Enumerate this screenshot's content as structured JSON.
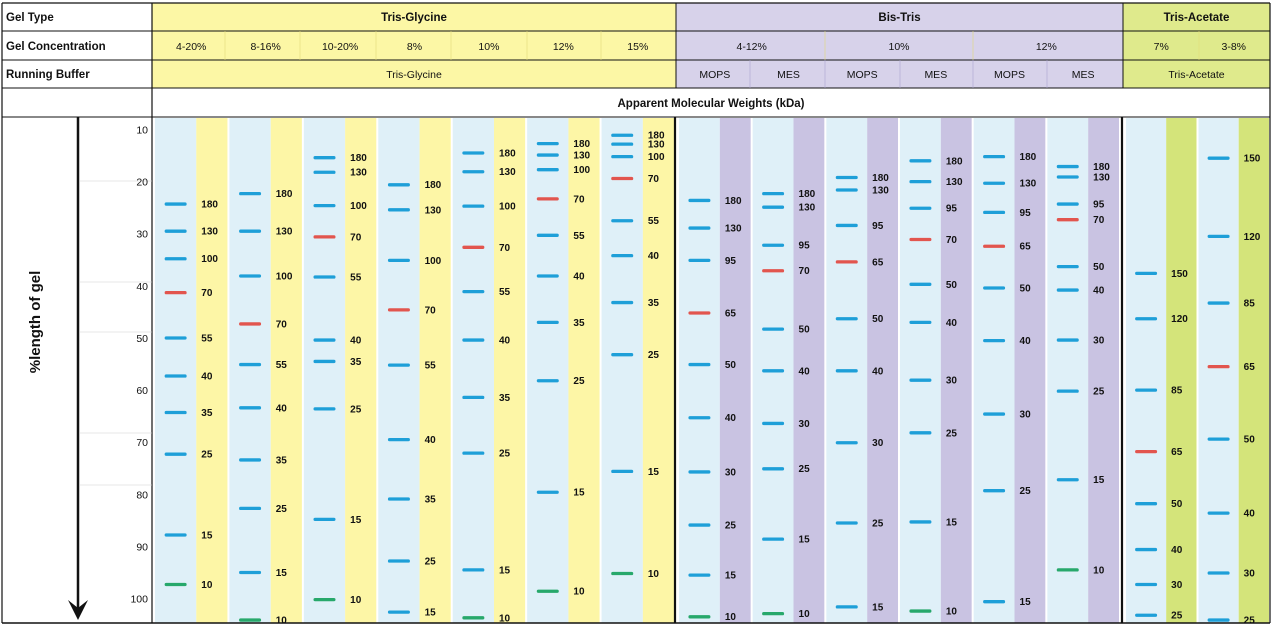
{
  "row_labels": {
    "gel_type": "Gel Type",
    "gel_concentration": "Gel Concentration",
    "running_buffer": "Running Buffer"
  },
  "colors": {
    "tris_glycine_bg": "#fcf7a5",
    "bis_tris_bg": "#d7d2ea",
    "tris_acetate_bg": "#dfea8c",
    "lane_bg": "#dff0f8",
    "label_col_tris_glycine": "#fdf6a6",
    "label_col_bis_tris": "#c9c3e2",
    "label_col_tris_acetate": "#d4e47a",
    "band_blue": "#1e9fd8",
    "band_red": "#e2554e",
    "band_green": "#27a86b",
    "label_red": "#e0312b",
    "label_green": "#1fa04d"
  },
  "groups": [
    {
      "name": "Tris-Glycine",
      "key": "tg"
    },
    {
      "name": "Bis-Tris",
      "key": "bt"
    },
    {
      "name": "Tris-Acetate",
      "key": "ta"
    }
  ],
  "buffers": [
    {
      "label": "Tris-Glycine",
      "group": "tg"
    },
    {
      "label": "MOPS",
      "group": "bt"
    },
    {
      "label": "MES",
      "group": "bt"
    },
    {
      "label": "MOPS",
      "group": "bt"
    },
    {
      "label": "MES",
      "group": "bt"
    },
    {
      "label": "MOPS",
      "group": "bt"
    },
    {
      "label": "MES",
      "group": "bt"
    },
    {
      "label": "Tris-Acetate",
      "group": "ta"
    }
  ],
  "section_title": "Apparent Molecular Weights (kDa)",
  "axis": {
    "label": "%length of gel",
    "ticks": [
      "10",
      "20",
      "30",
      "40",
      "50",
      "60",
      "70",
      "80",
      "90",
      "100"
    ],
    "range": [
      10,
      100
    ]
  },
  "chart_data": {
    "type": "table",
    "title": "Apparent Molecular Weights (kDa)",
    "ylabel": "%length of gel",
    "ylim": [
      10,
      100
    ],
    "lanes": [
      {
        "group": "tg",
        "concentration": "4-20%",
        "buffer": "Tris-Glycine",
        "bands": [
          {
            "kda": "180",
            "pos": 24.3
          },
          {
            "kda": "130",
            "pos": 29.5
          },
          {
            "kda": "100",
            "pos": 34.8
          },
          {
            "kda": "70",
            "pos": 41.3,
            "marker": "red"
          },
          {
            "kda": "55",
            "pos": 50
          },
          {
            "kda": "40",
            "pos": 57.3
          },
          {
            "kda": "35",
            "pos": 64.3
          },
          {
            "kda": "25",
            "pos": 72.3
          },
          {
            "kda": "15",
            "pos": 87.8
          },
          {
            "kda": "10",
            "pos": 97.3,
            "marker": "green"
          }
        ]
      },
      {
        "group": "tg",
        "concentration": "8-16%",
        "buffer": "Tris-Glycine",
        "bands": [
          {
            "kda": "180",
            "pos": 22.3
          },
          {
            "kda": "130",
            "pos": 29.5
          },
          {
            "kda": "100",
            "pos": 38.1
          },
          {
            "kda": "70",
            "pos": 47.3,
            "marker": "red"
          },
          {
            "kda": "55",
            "pos": 55.1
          },
          {
            "kda": "40",
            "pos": 63.4
          },
          {
            "kda": "35",
            "pos": 73.4
          },
          {
            "kda": "25",
            "pos": 82.7
          },
          {
            "kda": "15",
            "pos": 95
          },
          {
            "kda": "10",
            "pos": 104.2,
            "marker": "green"
          }
        ]
      },
      {
        "group": "tg",
        "concentration": "10-20%",
        "buffer": "Tris-Glycine",
        "bands": [
          {
            "kda": "180",
            "pos": 15.4
          },
          {
            "kda": "130",
            "pos": 18.2
          },
          {
            "kda": "100",
            "pos": 24.6
          },
          {
            "kda": "70",
            "pos": 30.6,
            "marker": "red"
          },
          {
            "kda": "55",
            "pos": 38.3
          },
          {
            "kda": "40",
            "pos": 50.4
          },
          {
            "kda": "35",
            "pos": 54.5
          },
          {
            "kda": "25",
            "pos": 63.6
          },
          {
            "kda": "15",
            "pos": 84.8
          },
          {
            "kda": "10",
            "pos": 100.2,
            "marker": "green"
          }
        ]
      },
      {
        "group": "tg",
        "concentration": "8%",
        "buffer": "Tris-Glycine",
        "bands": [
          {
            "kda": "180",
            "pos": 20.6
          },
          {
            "kda": "130",
            "pos": 25.4
          },
          {
            "kda": "100",
            "pos": 35.1
          },
          {
            "kda": "70",
            "pos": 44.6,
            "marker": "red"
          },
          {
            "kda": "55",
            "pos": 55.2
          },
          {
            "kda": "40",
            "pos": 69.5
          },
          {
            "kda": "35",
            "pos": 80.9
          },
          {
            "kda": "25",
            "pos": 92.8
          },
          {
            "kda": "15",
            "pos": 102.6
          }
        ]
      },
      {
        "group": "tg",
        "concentration": "10%",
        "buffer": "Tris-Glycine",
        "bands": [
          {
            "kda": "180",
            "pos": 14.5
          },
          {
            "kda": "130",
            "pos": 18.1
          },
          {
            "kda": "100",
            "pos": 24.7
          },
          {
            "kda": "70",
            "pos": 32.6,
            "marker": "red"
          },
          {
            "kda": "55",
            "pos": 41.1
          },
          {
            "kda": "40",
            "pos": 50.4
          },
          {
            "kda": "35",
            "pos": 61.4
          },
          {
            "kda": "25",
            "pos": 72.1
          },
          {
            "kda": "15",
            "pos": 94.5
          },
          {
            "kda": "10",
            "pos": 103.7,
            "marker": "green"
          }
        ]
      },
      {
        "group": "tg",
        "concentration": "12%",
        "buffer": "Tris-Glycine",
        "bands": [
          {
            "kda": "180",
            "pos": 12.7
          },
          {
            "kda": "130",
            "pos": 14.9
          },
          {
            "kda": "100",
            "pos": 17.7
          },
          {
            "kda": "70",
            "pos": 23.3,
            "marker": "red"
          },
          {
            "kda": "55",
            "pos": 30.3
          },
          {
            "kda": "40",
            "pos": 38.1
          },
          {
            "kda": "35",
            "pos": 47
          },
          {
            "kda": "25",
            "pos": 58.2
          },
          {
            "kda": "15",
            "pos": 79.6
          },
          {
            "kda": "10",
            "pos": 98.6,
            "marker": "green"
          }
        ]
      },
      {
        "group": "tg",
        "concentration": "15%",
        "buffer": "Tris-Glycine",
        "bands": [
          {
            "kda": "180",
            "pos": 11.1
          },
          {
            "kda": "130",
            "pos": 12.8
          },
          {
            "kda": "100",
            "pos": 15.2
          },
          {
            "kda": "70",
            "pos": 19.4,
            "marker": "red"
          },
          {
            "kda": "55",
            "pos": 27.5
          },
          {
            "kda": "40",
            "pos": 34.2
          },
          {
            "kda": "35",
            "pos": 43.2
          },
          {
            "kda": "25",
            "pos": 53.2
          },
          {
            "kda": "15",
            "pos": 75.6
          },
          {
            "kda": "10",
            "pos": 95.2,
            "marker": "green"
          }
        ]
      },
      {
        "group": "bt",
        "concentration": "4-12%",
        "buffer": "MOPS",
        "bands": [
          {
            "kda": "180",
            "pos": 23.6
          },
          {
            "kda": "130",
            "pos": 28.9
          },
          {
            "kda": "95",
            "pos": 35.1
          },
          {
            "kda": "65",
            "pos": 45.2,
            "marker": "red"
          },
          {
            "kda": "50",
            "pos": 55.1
          },
          {
            "kda": "40",
            "pos": 65.3
          },
          {
            "kda": "30",
            "pos": 75.7
          },
          {
            "kda": "25",
            "pos": 85.9
          },
          {
            "kda": "15",
            "pos": 95.5
          },
          {
            "kda": "10",
            "pos": 103.5,
            "marker": "green"
          }
        ]
      },
      {
        "group": "bt",
        "concentration": "4-12%",
        "buffer": "MES",
        "bands": [
          {
            "kda": "180",
            "pos": 22.3
          },
          {
            "kda": "130",
            "pos": 24.9
          },
          {
            "kda": "95",
            "pos": 32.2
          },
          {
            "kda": "70",
            "pos": 37.1,
            "marker": "red"
          },
          {
            "kda": "50",
            "pos": 48.3
          },
          {
            "kda": "40",
            "pos": 56.3
          },
          {
            "kda": "30",
            "pos": 66.4
          },
          {
            "kda": "25",
            "pos": 75.1
          },
          {
            "kda": "15",
            "pos": 88.6
          },
          {
            "kda": "10",
            "pos": 102.9,
            "marker": "green"
          }
        ]
      },
      {
        "group": "bt",
        "concentration": "10%",
        "buffer": "MOPS",
        "bands": [
          {
            "kda": "180",
            "pos": 19.2
          },
          {
            "kda": "130",
            "pos": 21.6
          },
          {
            "kda": "95",
            "pos": 28.4
          },
          {
            "kda": "65",
            "pos": 35.4,
            "marker": "red"
          },
          {
            "kda": "50",
            "pos": 46.3
          },
          {
            "kda": "40",
            "pos": 56.3
          },
          {
            "kda": "30",
            "pos": 70.1
          },
          {
            "kda": "25",
            "pos": 85.5
          },
          {
            "kda": "15",
            "pos": 101.6
          }
        ]
      },
      {
        "group": "bt",
        "concentration": "10%",
        "buffer": "MES",
        "bands": [
          {
            "kda": "180",
            "pos": 16
          },
          {
            "kda": "130",
            "pos": 20
          },
          {
            "kda": "95",
            "pos": 25.1
          },
          {
            "kda": "70",
            "pos": 31.1,
            "marker": "red"
          },
          {
            "kda": "50",
            "pos": 39.7
          },
          {
            "kda": "40",
            "pos": 47
          },
          {
            "kda": "30",
            "pos": 58.1
          },
          {
            "kda": "25",
            "pos": 68.2
          },
          {
            "kda": "15",
            "pos": 85.3
          },
          {
            "kda": "10",
            "pos": 102.4,
            "marker": "green"
          }
        ]
      },
      {
        "group": "bt",
        "concentration": "12%",
        "buffer": "MOPS",
        "bands": [
          {
            "kda": "180",
            "pos": 15.2
          },
          {
            "kda": "130",
            "pos": 20.3
          },
          {
            "kda": "95",
            "pos": 25.9
          },
          {
            "kda": "65",
            "pos": 32.4,
            "marker": "red"
          },
          {
            "kda": "50",
            "pos": 40.4
          },
          {
            "kda": "40",
            "pos": 50.5
          },
          {
            "kda": "30",
            "pos": 64.6
          },
          {
            "kda": "25",
            "pos": 79.3
          },
          {
            "kda": "15",
            "pos": 100.6
          }
        ]
      },
      {
        "group": "bt",
        "concentration": "12%",
        "buffer": "MES",
        "bands": [
          {
            "kda": "180",
            "pos": 17.1
          },
          {
            "kda": "130",
            "pos": 19.1
          },
          {
            "kda": "95",
            "pos": 24.3
          },
          {
            "kda": "70",
            "pos": 27.3,
            "marker": "red"
          },
          {
            "kda": "50",
            "pos": 36.3
          },
          {
            "kda": "40",
            "pos": 40.8
          },
          {
            "kda": "30",
            "pos": 50.4
          },
          {
            "kda": "25",
            "pos": 60.2
          },
          {
            "kda": "15",
            "pos": 77.2
          },
          {
            "kda": "10",
            "pos": 94.5,
            "marker": "green"
          }
        ]
      },
      {
        "group": "ta",
        "concentration": "7%",
        "buffer": "Tris-Acetate",
        "bands": [
          {
            "kda": "150",
            "pos": 37.6
          },
          {
            "kda": "120",
            "pos": 46.3
          },
          {
            "kda": "85",
            "pos": 60
          },
          {
            "kda": "65",
            "pos": 71.8,
            "marker": "red"
          },
          {
            "kda": "50",
            "pos": 81.8
          },
          {
            "kda": "40",
            "pos": 90.6
          },
          {
            "kda": "30",
            "pos": 97.3
          },
          {
            "kda": "25",
            "pos": 103.2
          }
        ]
      },
      {
        "group": "ta",
        "concentration": "3-8%",
        "buffer": "Tris-Acetate",
        "bands": [
          {
            "kda": "150",
            "pos": 15.5
          },
          {
            "kda": "120",
            "pos": 30.5
          },
          {
            "kda": "85",
            "pos": 43.3
          },
          {
            "kda": "65",
            "pos": 55.5,
            "marker": "red"
          },
          {
            "kda": "50",
            "pos": 69.4
          },
          {
            "kda": "40",
            "pos": 83.6
          },
          {
            "kda": "30",
            "pos": 95.1
          },
          {
            "kda": "25",
            "pos": 104.2
          }
        ]
      }
    ]
  }
}
